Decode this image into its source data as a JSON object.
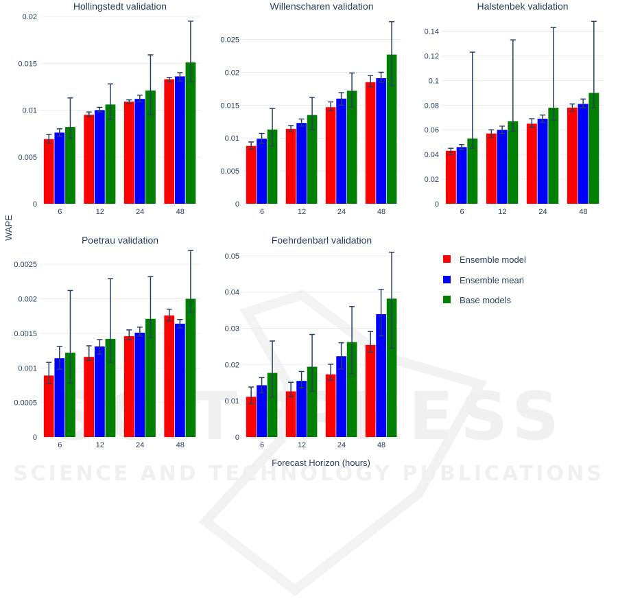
{
  "y_axis_title": "WAPE",
  "x_axis_title": "Forecast Horizon (hours)",
  "watermark": {
    "brand": "SCITEPRESS",
    "tagline": "SCIENCE AND TECHNOLOGY PUBLICATIONS"
  },
  "legend": [
    {
      "name": "Ensemble model",
      "color": "#ff0000"
    },
    {
      "name": "Ensemble mean",
      "color": "#0000ff"
    },
    {
      "name": "Base models",
      "color": "#008000"
    }
  ],
  "chart_data": [
    {
      "type": "bar",
      "title": "Hollingstedt validation",
      "categories": [
        "6",
        "12",
        "24",
        "48"
      ],
      "ylim": [
        0,
        0.02
      ],
      "yticks": [
        "0",
        "0.005",
        "0.01",
        "0.015",
        "0.02"
      ],
      "ytick_values": [
        0,
        0.005,
        0.01,
        0.015,
        0.02
      ],
      "series": [
        {
          "name": "Ensemble model",
          "values": [
            0.0069,
            0.0095,
            0.0109,
            0.0133
          ],
          "err_low": [
            0.0065,
            0.0093,
            0.0107,
            0.013
          ],
          "err_high": [
            0.0074,
            0.0098,
            0.0111,
            0.0135
          ]
        },
        {
          "name": "Ensemble mean",
          "values": [
            0.0076,
            0.01,
            0.0112,
            0.0136
          ],
          "err_low": [
            0.0072,
            0.0098,
            0.0109,
            0.0131
          ],
          "err_high": [
            0.008,
            0.0103,
            0.0116,
            0.014
          ]
        },
        {
          "name": "Base models",
          "values": [
            0.0082,
            0.0106,
            0.0121,
            0.0151
          ],
          "err_low": [
            0.007,
            0.009,
            0.0095,
            0.013
          ],
          "err_high": [
            0.0113,
            0.0128,
            0.0159,
            0.0195
          ]
        }
      ]
    },
    {
      "type": "bar",
      "title": "Willenscharen validation",
      "categories": [
        "6",
        "12",
        "24",
        "48"
      ],
      "ylim": [
        0,
        0.0285
      ],
      "yticks": [
        "0",
        "0.005",
        "0.01",
        "0.015",
        "0.02",
        "0.025"
      ],
      "ytick_values": [
        0,
        0.005,
        0.01,
        0.015,
        0.02,
        0.025
      ],
      "series": [
        {
          "name": "Ensemble model",
          "values": [
            0.0088,
            0.0114,
            0.0147,
            0.0185
          ],
          "err_low": [
            0.0083,
            0.011,
            0.0142,
            0.0178
          ],
          "err_high": [
            0.0094,
            0.0119,
            0.0155,
            0.0195
          ]
        },
        {
          "name": "Ensemble mean",
          "values": [
            0.0099,
            0.0123,
            0.016,
            0.0191
          ],
          "err_low": [
            0.0092,
            0.0118,
            0.015,
            0.0185
          ],
          "err_high": [
            0.0107,
            0.0129,
            0.0169,
            0.02
          ]
        },
        {
          "name": "Base models",
          "values": [
            0.0113,
            0.0135,
            0.0172,
            0.0227
          ],
          "err_low": [
            0.0088,
            0.0113,
            0.0147,
            0.018
          ],
          "err_high": [
            0.0145,
            0.0162,
            0.0199,
            0.0277
          ]
        }
      ]
    },
    {
      "type": "bar",
      "title": "Halstenbek validation",
      "categories": [
        "6",
        "12",
        "24",
        "48"
      ],
      "ylim": [
        0,
        0.152
      ],
      "yticks": [
        "0",
        "0.02",
        "0.04",
        "0.06",
        "0.08",
        "0.1",
        "0.12",
        "0.14"
      ],
      "ytick_values": [
        0,
        0.02,
        0.04,
        0.06,
        0.08,
        0.1,
        0.12,
        0.14
      ],
      "series": [
        {
          "name": "Ensemble model",
          "values": [
            0.043,
            0.057,
            0.065,
            0.078
          ],
          "err_low": [
            0.04,
            0.054,
            0.062,
            0.075
          ],
          "err_high": [
            0.045,
            0.06,
            0.069,
            0.081
          ]
        },
        {
          "name": "Ensemble mean",
          "values": [
            0.046,
            0.06,
            0.069,
            0.081
          ],
          "err_low": [
            0.044,
            0.057,
            0.066,
            0.078
          ],
          "err_high": [
            0.048,
            0.063,
            0.072,
            0.085
          ]
        },
        {
          "name": "Base models",
          "values": [
            0.053,
            0.067,
            0.078,
            0.09
          ],
          "err_low": [
            0.045,
            0.059,
            0.068,
            0.078
          ],
          "err_high": [
            0.123,
            0.133,
            0.143,
            0.148
          ]
        }
      ]
    },
    {
      "type": "bar",
      "title": "Poetrau validation",
      "categories": [
        "6",
        "12",
        "24",
        "48"
      ],
      "ylim": [
        0,
        0.0027
      ],
      "yticks": [
        "0",
        "0.0005",
        "0.001",
        "0.0015",
        "0.002",
        "0.0025"
      ],
      "ytick_values": [
        0,
        0.0005,
        0.001,
        0.0015,
        0.002,
        0.0025
      ],
      "series": [
        {
          "name": "Ensemble model",
          "values": [
            0.00089,
            0.00116,
            0.00146,
            0.00176
          ],
          "err_low": [
            0.00077,
            0.00111,
            0.00141,
            0.00168
          ],
          "err_high": [
            0.00108,
            0.00132,
            0.00155,
            0.00185
          ]
        },
        {
          "name": "Ensemble mean",
          "values": [
            0.00114,
            0.00131,
            0.00151,
            0.00164
          ],
          "err_low": [
            0.00098,
            0.0012,
            0.00146,
            0.00158
          ],
          "err_high": [
            0.00131,
            0.00141,
            0.00159,
            0.0017
          ]
        },
        {
          "name": "Base models",
          "values": [
            0.00122,
            0.00142,
            0.00171,
            0.002
          ],
          "err_low": [
            0.00078,
            0.00108,
            0.00144,
            0.0018
          ],
          "err_high": [
            0.00212,
            0.00229,
            0.00232,
            0.0027
          ]
        }
      ]
    },
    {
      "type": "bar",
      "title": "Foehrdenbarl validation",
      "categories": [
        "6",
        "12",
        "24",
        "48"
      ],
      "ylim": [
        0,
        0.0515
      ],
      "yticks": [
        "0",
        "0.01",
        "0.02",
        "0.03",
        "0.04",
        "0.05"
      ],
      "ytick_values": [
        0,
        0.01,
        0.02,
        0.03,
        0.04,
        0.05
      ],
      "series": [
        {
          "name": "Ensemble model",
          "values": [
            0.0111,
            0.0126,
            0.0173,
            0.0254
          ],
          "err_low": [
            0.0092,
            0.0111,
            0.0157,
            0.0234
          ],
          "err_high": [
            0.0138,
            0.0151,
            0.0201,
            0.0291
          ]
        },
        {
          "name": "Ensemble mean",
          "values": [
            0.0143,
            0.0155,
            0.0223,
            0.0339
          ],
          "err_low": [
            0.0122,
            0.0136,
            0.0188,
            0.0279
          ],
          "err_high": [
            0.0164,
            0.0181,
            0.026,
            0.0407
          ]
        },
        {
          "name": "Base models",
          "values": [
            0.0177,
            0.0194,
            0.0262,
            0.0382
          ],
          "err_low": [
            0.011,
            0.0126,
            0.0175,
            0.0245
          ],
          "err_high": [
            0.0265,
            0.0283,
            0.036,
            0.051
          ]
        }
      ]
    }
  ]
}
